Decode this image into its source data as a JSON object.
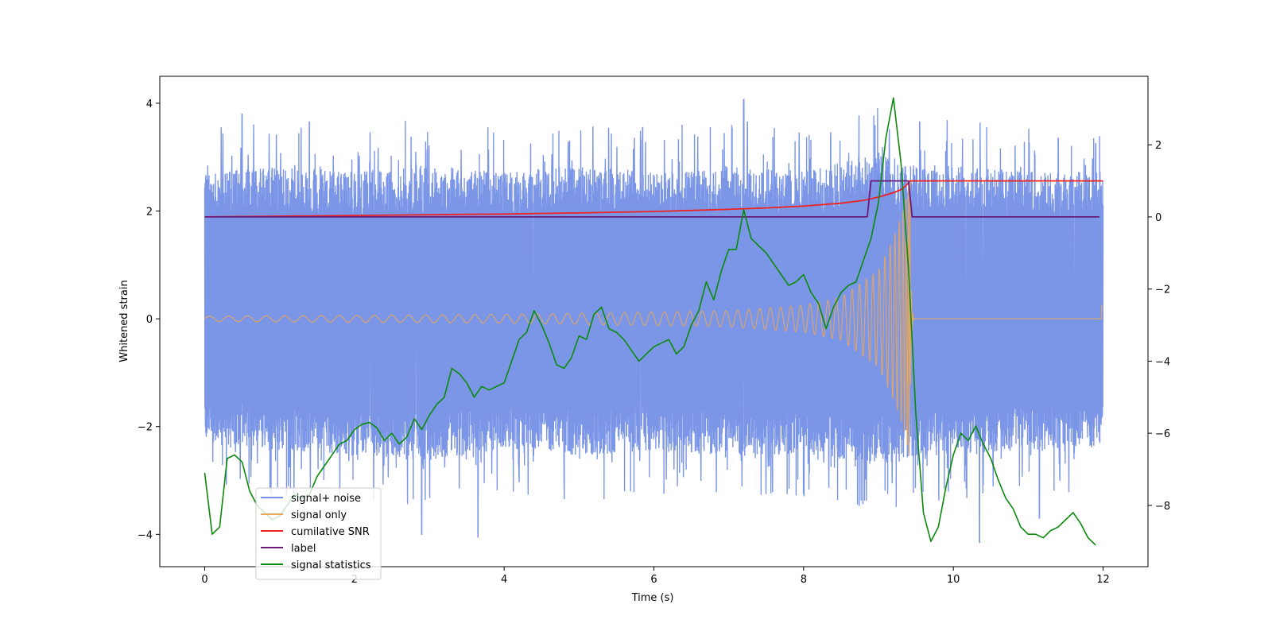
{
  "chart_data": {
    "type": "line",
    "xlabel": "Time (s)",
    "ylabel_left": "Whitened strain",
    "ylabel_right": "",
    "xlim": [
      -0.6,
      12.6
    ],
    "ylim_left": [
      -4.6,
      4.5
    ],
    "ylim_right": [
      -9.7,
      3.9
    ],
    "x_ticks": [
      0,
      2,
      4,
      6,
      8,
      10,
      12
    ],
    "y_ticks_left": [
      -4,
      -2,
      0,
      2,
      4
    ],
    "y_ticks_right": [
      -8,
      -6,
      -4,
      -2,
      0,
      2
    ],
    "grid": false,
    "legend_position": "lower-left",
    "series": [
      {
        "name": "signal+ noise",
        "axis": "left",
        "color": "#7590e6",
        "style": "noise-band",
        "envelope_x": [
          0,
          1,
          2,
          3,
          4,
          5,
          6,
          7,
          8,
          9,
          9.4,
          10,
          11,
          12
        ],
        "upper_typical": [
          2.5,
          2.6,
          2.5,
          2.6,
          2.5,
          2.6,
          2.5,
          2.6,
          2.5,
          2.8,
          2.6,
          2.6,
          2.5,
          2.5
        ],
        "lower_typical": [
          -2.1,
          -2.2,
          -2.3,
          -2.4,
          -2.2,
          -2.3,
          -2.2,
          -2.3,
          -2.3,
          -2.4,
          -2.4,
          -2.3,
          -2.2,
          -2.2
        ],
        "peaks": [
          [
            0.5,
            3.8
          ],
          [
            1.4,
            3.65
          ],
          [
            2.9,
            -4.0
          ],
          [
            3.65,
            -4.05
          ],
          [
            5.85,
            3.55
          ],
          [
            7.2,
            4.07
          ],
          [
            7.25,
            3.65
          ],
          [
            9.55,
            3.65
          ],
          [
            10.35,
            -4.15
          ],
          [
            11.4,
            3.35
          ],
          [
            11.15,
            -3.7
          ],
          [
            11.9,
            3.25
          ]
        ]
      },
      {
        "name": "signal only",
        "axis": "left",
        "color": "#e8a65a",
        "style": "chirp",
        "t_merger": 9.42,
        "amplitude_points": [
          [
            0,
            0.05
          ],
          [
            4,
            0.08
          ],
          [
            7,
            0.15
          ],
          [
            8,
            0.25
          ],
          [
            8.5,
            0.4
          ],
          [
            9.0,
            0.9
          ],
          [
            9.2,
            1.5
          ],
          [
            9.35,
            2.1
          ],
          [
            9.42,
            2.6
          ]
        ]
      },
      {
        "name": "cumilative SNR",
        "axis": "right",
        "color": "#ee2222",
        "x": [
          0,
          1,
          2,
          3,
          4,
          5,
          6,
          7,
          7.5,
          8,
          8.5,
          8.8,
          9.0,
          9.2,
          9.3,
          9.35,
          9.42,
          9.45,
          12
        ],
        "y": [
          0.0,
          0.02,
          0.04,
          0.06,
          0.08,
          0.11,
          0.15,
          0.21,
          0.25,
          0.3,
          0.38,
          0.46,
          0.55,
          0.67,
          0.76,
          0.83,
          1.0,
          1.0,
          1.0
        ]
      },
      {
        "name": "label",
        "axis": "right",
        "color": "#6a1a7a",
        "x": [
          0,
          8.85,
          8.9,
          9.4,
          9.45,
          11.95
        ],
        "y": [
          0,
          0,
          1,
          1,
          0,
          0
        ]
      },
      {
        "name": "signal statistics",
        "axis": "right",
        "color": "#0a8a0a",
        "x": [
          0,
          0.1,
          0.2,
          0.3,
          0.4,
          0.5,
          0.6,
          0.7,
          0.8,
          0.9,
          1.0,
          1.1,
          1.2,
          1.3,
          1.4,
          1.5,
          1.6,
          1.7,
          1.8,
          1.9,
          2.0,
          2.1,
          2.2,
          2.3,
          2.4,
          2.5,
          2.6,
          2.7,
          2.8,
          2.9,
          3.0,
          3.1,
          3.2,
          3.3,
          3.4,
          3.5,
          3.6,
          3.7,
          3.8,
          3.9,
          4.0,
          4.1,
          4.2,
          4.3,
          4.4,
          4.5,
          4.6,
          4.7,
          4.8,
          4.9,
          5.0,
          5.1,
          5.2,
          5.3,
          5.4,
          5.5,
          5.6,
          5.7,
          5.8,
          5.9,
          6.0,
          6.1,
          6.2,
          6.3,
          6.4,
          6.5,
          6.6,
          6.7,
          6.8,
          6.9,
          7.0,
          7.1,
          7.2,
          7.3,
          7.4,
          7.5,
          7.6,
          7.7,
          7.8,
          7.9,
          8.0,
          8.1,
          8.2,
          8.3,
          8.4,
          8.5,
          8.6,
          8.7,
          8.8,
          8.9,
          9.0,
          9.1,
          9.2,
          9.3,
          9.4,
          9.5,
          9.6,
          9.7,
          9.8,
          9.9,
          10.0,
          10.1,
          10.2,
          10.3,
          10.4,
          10.5,
          10.6,
          10.7,
          10.8,
          10.9,
          11.0,
          11.1,
          11.2,
          11.3,
          11.4,
          11.5,
          11.6,
          11.7,
          11.8,
          11.9
        ],
        "y": [
          -7.1,
          -8.8,
          -8.6,
          -6.7,
          -6.6,
          -6.8,
          -7.6,
          -8.0,
          -8.2,
          -8.4,
          -8.3,
          -8.0,
          -7.7,
          -7.8,
          -7.7,
          -7.2,
          -6.9,
          -6.6,
          -6.3,
          -6.2,
          -5.9,
          -5.75,
          -5.7,
          -5.85,
          -6.2,
          -6.0,
          -6.3,
          -6.1,
          -5.6,
          -5.9,
          -5.5,
          -5.2,
          -5.0,
          -4.2,
          -4.35,
          -4.6,
          -5.0,
          -4.7,
          -4.8,
          -4.7,
          -4.6,
          -4.0,
          -3.4,
          -3.2,
          -2.6,
          -3.0,
          -3.5,
          -4.1,
          -4.2,
          -3.9,
          -3.3,
          -3.4,
          -2.7,
          -2.5,
          -3.1,
          -3.2,
          -3.4,
          -3.7,
          -4.0,
          -3.8,
          -3.6,
          -3.5,
          -3.4,
          -3.8,
          -3.6,
          -3.0,
          -2.6,
          -1.8,
          -2.3,
          -1.5,
          -0.9,
          -0.9,
          0.2,
          -0.6,
          -0.8,
          -1.0,
          -1.3,
          -1.6,
          -1.9,
          -1.8,
          -1.6,
          -2.1,
          -2.4,
          -3.1,
          -2.5,
          -2.1,
          -1.9,
          -1.8,
          -1.2,
          -0.6,
          0.4,
          2.2,
          3.3,
          1.5,
          -1.4,
          -5.5,
          -8.2,
          -9.0,
          -8.6,
          -7.5,
          -6.6,
          -6.0,
          -6.2,
          -5.8,
          -6.3,
          -6.7,
          -7.3,
          -7.8,
          -8.1,
          -8.6,
          -8.8,
          -8.8,
          -8.9,
          -8.7,
          -8.6,
          -8.4,
          -8.2,
          -8.5,
          -8.9,
          -9.1
        ]
      }
    ]
  }
}
